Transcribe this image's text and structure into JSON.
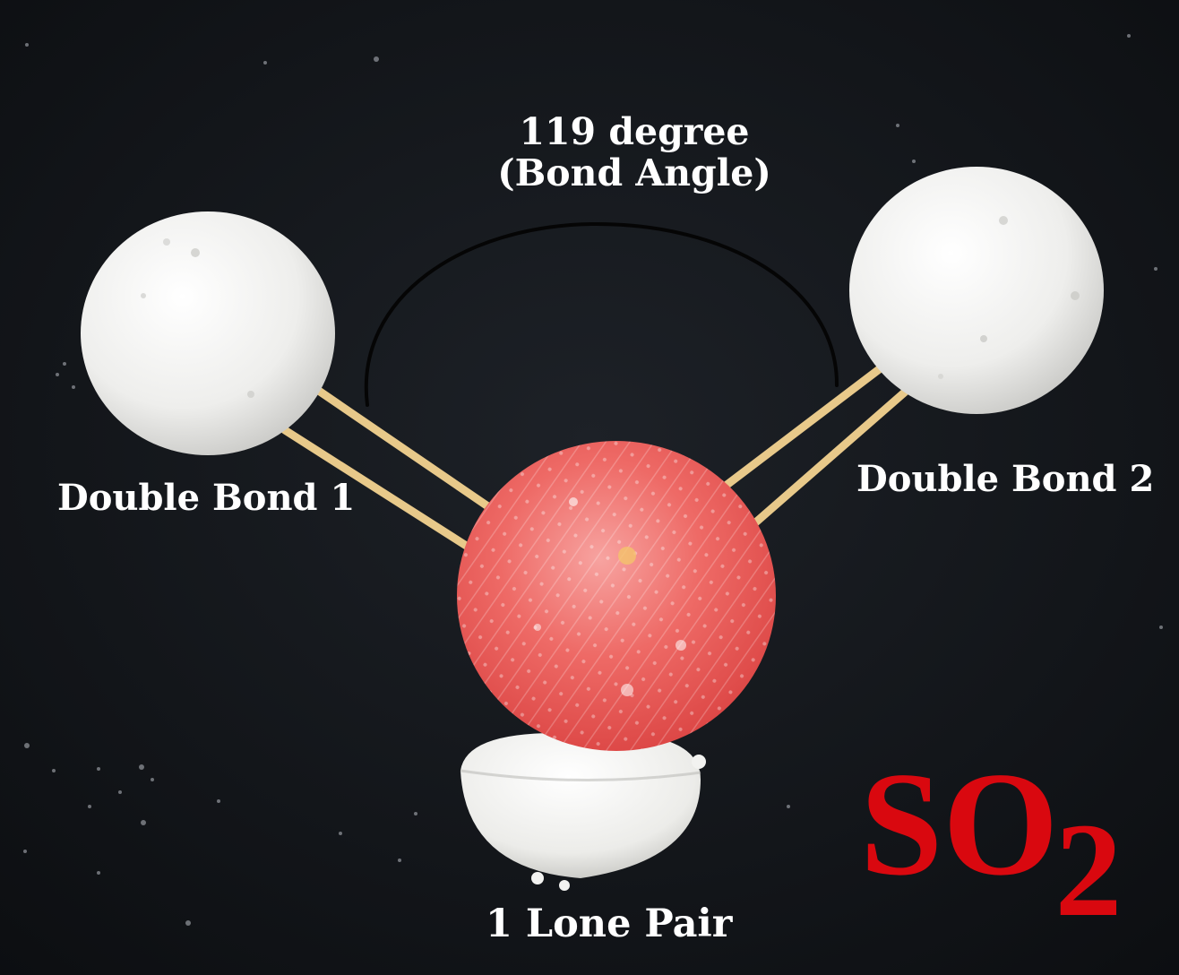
{
  "image": {
    "description_labels": {
      "angle_value": "119 degree",
      "angle_caption": "(Bond Angle)",
      "bond_left": "Double Bond 1",
      "bond_right": "Double Bond 2",
      "lone_pair": "1 Lone Pair"
    },
    "formula": {
      "base": "SO",
      "subscript": "2"
    }
  },
  "colors": {
    "background": "#121519",
    "oxygen_ball": "#f4f4f2",
    "sulfur_ball": "#ec5a5a",
    "stick": "#e8c98a",
    "arc": "#050505",
    "label_text": "#ffffff",
    "formula_text": "#d9080f"
  },
  "icons": [
    "oxygen-atom-left",
    "oxygen-atom-right",
    "sulfur-atom",
    "lone-pair-lobe",
    "bond-angle-arc"
  ]
}
